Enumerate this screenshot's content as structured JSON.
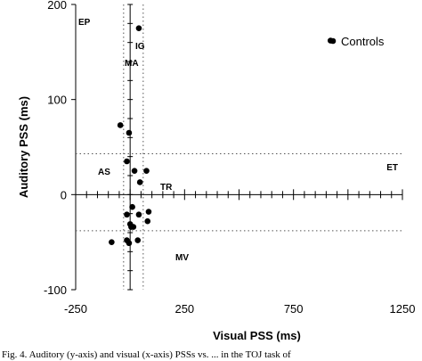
{
  "chart_data": {
    "type": "scatter",
    "xlabel": "Visual PSS (ms)",
    "ylabel": "Auditory PSS (ms)",
    "xlim": [
      -250,
      1250
    ],
    "ylim": [
      -100,
      200
    ],
    "x_ticks": [
      -250,
      250,
      750,
      1250
    ],
    "y_ticks": [
      -100,
      0,
      100,
      200
    ],
    "x_tick_labels": [
      "-250",
      "250",
      "750",
      "1250"
    ],
    "y_tick_labels": [
      "-100",
      "0",
      "100",
      "200"
    ],
    "grid": false,
    "legend": {
      "position": "top-right",
      "label": "Controls"
    },
    "reference_lines": {
      "vertical_dotted": [
        -30,
        60
      ],
      "horizontal_dotted": [
        43,
        -38
      ],
      "solid_axes": {
        "x": 0,
        "y": 0
      }
    },
    "region_labels": [
      "EP",
      "IG",
      "MA",
      "AS",
      "TR",
      "ET",
      "MV"
    ],
    "series": [
      {
        "name": "Controls",
        "points": [
          {
            "x": 40,
            "y": 175
          },
          {
            "x": 920,
            "y": 162
          },
          {
            "x": -45,
            "y": 73
          },
          {
            "x": -5,
            "y": 65
          },
          {
            "x": -15,
            "y": 35
          },
          {
            "x": 20,
            "y": 25
          },
          {
            "x": 75,
            "y": 25
          },
          {
            "x": 45,
            "y": 13
          },
          {
            "x": 10,
            "y": -13
          },
          {
            "x": 85,
            "y": -18
          },
          {
            "x": -15,
            "y": -21
          },
          {
            "x": 40,
            "y": -21
          },
          {
            "x": 80,
            "y": -28
          },
          {
            "x": 0,
            "y": -31
          },
          {
            "x": 5,
            "y": -34
          },
          {
            "x": 15,
            "y": -34
          },
          {
            "x": -85,
            "y": -50
          },
          {
            "x": -15,
            "y": -48
          },
          {
            "x": 35,
            "y": -48
          },
          {
            "x": -5,
            "y": -51
          }
        ]
      }
    ]
  },
  "caption": "Fig. 4. Auditory (y-axis) and visual (x-axis) PSSs vs. ... in the TOJ task of"
}
